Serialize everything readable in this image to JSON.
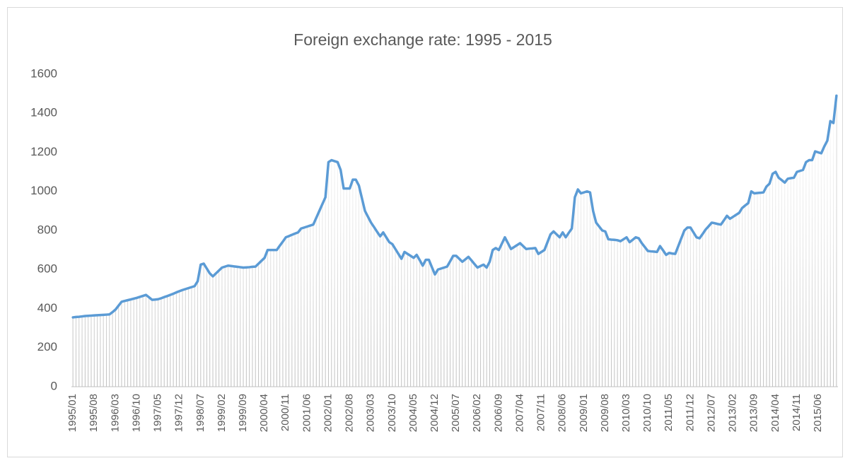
{
  "chart_data": {
    "type": "line",
    "title": "Foreign exchange rate: 1995 - 2015",
    "color": "#5b9bd5",
    "fill_color": "#bfbfbf",
    "ylim": [
      0,
      1600
    ],
    "yticks": [
      0,
      200,
      400,
      600,
      800,
      1000,
      1200,
      1400,
      1600
    ],
    "grid": false,
    "categories": [
      "1995/01",
      null,
      null,
      null,
      null,
      null,
      null,
      "1995/08",
      null,
      null,
      null,
      null,
      null,
      null,
      "1996/03",
      null,
      null,
      null,
      null,
      null,
      null,
      "1996/10",
      null,
      null,
      null,
      null,
      null,
      null,
      "1997/05",
      null,
      null,
      null,
      null,
      null,
      null,
      "1997/12",
      null,
      null,
      null,
      null,
      null,
      null,
      "1998/07",
      null,
      null,
      null,
      null,
      null,
      null,
      "1999/02",
      null,
      null,
      null,
      null,
      null,
      null,
      "1999/09",
      null,
      null,
      null,
      null,
      null,
      null,
      "2000/04",
      null,
      null,
      null,
      null,
      null,
      null,
      "2000/11",
      null,
      null,
      null,
      null,
      null,
      null,
      "2001/06",
      null,
      null,
      null,
      null,
      null,
      null,
      "2002/01",
      null,
      null,
      null,
      null,
      null,
      null,
      "2002/08",
      null,
      null,
      null,
      null,
      null,
      null,
      "2003/03",
      null,
      null,
      null,
      null,
      null,
      null,
      "2003/10",
      null,
      null,
      null,
      null,
      null,
      null,
      "2004/05",
      null,
      null,
      null,
      null,
      null,
      null,
      "2004/12",
      null,
      null,
      null,
      null,
      null,
      null,
      "2005/07",
      null,
      null,
      null,
      null,
      null,
      null,
      "2006/02",
      null,
      null,
      null,
      null,
      null,
      null,
      "2006/09",
      null,
      null,
      null,
      null,
      null,
      null,
      "2007/04",
      null,
      null,
      null,
      null,
      null,
      null,
      "2007/11",
      null,
      null,
      null,
      null,
      null,
      null,
      "2008/06",
      null,
      null,
      null,
      null,
      null,
      null,
      "2009/01",
      null,
      null,
      null,
      null,
      null,
      null,
      "2009/08",
      null,
      null,
      null,
      null,
      null,
      null,
      "2010/03",
      null,
      null,
      null,
      null,
      null,
      null,
      "2010/10",
      null,
      null,
      null,
      null,
      null,
      null,
      "2011/05",
      null,
      null,
      null,
      null,
      null,
      null,
      "2011/12",
      null,
      null,
      null,
      null,
      null,
      null,
      "2012/07",
      null,
      null,
      null,
      null,
      null,
      null,
      "2013/02",
      null,
      null,
      null,
      null,
      null,
      null,
      "2013/09",
      null,
      null,
      null,
      null,
      null,
      null,
      "2014/04",
      null,
      null,
      null,
      null,
      null,
      null,
      "2014/11",
      null,
      null,
      null,
      null,
      null,
      null,
      "2015/06",
      null,
      null,
      null,
      null,
      null,
      null
    ],
    "values": [
      355,
      357,
      358,
      360,
      362,
      363,
      364,
      365,
      366,
      367,
      368,
      369,
      370,
      382,
      395,
      415,
      435,
      439,
      443,
      447,
      451,
      455,
      460,
      465,
      470,
      458,
      445,
      446,
      448,
      453,
      459,
      464,
      470,
      476,
      483,
      489,
      495,
      500,
      505,
      510,
      515,
      540,
      625,
      630,
      605,
      580,
      565,
      580,
      595,
      610,
      615,
      620,
      618,
      616,
      614,
      612,
      610,
      611,
      612,
      614,
      615,
      630,
      645,
      660,
      700,
      700,
      700,
      700,
      722,
      743,
      765,
      771,
      778,
      784,
      790,
      810,
      815,
      820,
      825,
      830,
      865,
      900,
      935,
      970,
      1150,
      1160,
      1155,
      1150,
      1110,
      1015,
      1015,
      1015,
      1060,
      1060,
      1030,
      965,
      900,
      870,
      840,
      817,
      793,
      770,
      790,
      765,
      740,
      730,
      705,
      680,
      655,
      690,
      680,
      670,
      660,
      675,
      648,
      620,
      650,
      650,
      612,
      575,
      600,
      605,
      610,
      615,
      642,
      670,
      670,
      655,
      640,
      652,
      665,
      647,
      628,
      610,
      618,
      625,
      610,
      640,
      700,
      710,
      700,
      732,
      765,
      735,
      705,
      715,
      725,
      735,
      720,
      705,
      707,
      708,
      710,
      680,
      690,
      700,
      740,
      780,
      795,
      780,
      765,
      790,
      765,
      788,
      810,
      970,
      1010,
      990,
      995,
      1000,
      995,
      900,
      840,
      820,
      800,
      795,
      755,
      753,
      752,
      750,
      745,
      755,
      765,
      740,
      752,
      765,
      760,
      735,
      715,
      695,
      693,
      692,
      690,
      720,
      698,
      675,
      685,
      682,
      680,
      720,
      760,
      800,
      815,
      815,
      790,
      765,
      760,
      782,
      805,
      822,
      840,
      837,
      833,
      830,
      852,
      875,
      860,
      870,
      880,
      890,
      915,
      928,
      940,
      1000,
      990,
      992,
      993,
      995,
      1025,
      1040,
      1090,
      1100,
      1070,
      1058,
      1045,
      1065,
      1068,
      1070,
      1100,
      1105,
      1110,
      1150,
      1160,
      1160,
      1205,
      1200,
      1195,
      1230,
      1260,
      1360,
      1350,
      1490
    ]
  }
}
